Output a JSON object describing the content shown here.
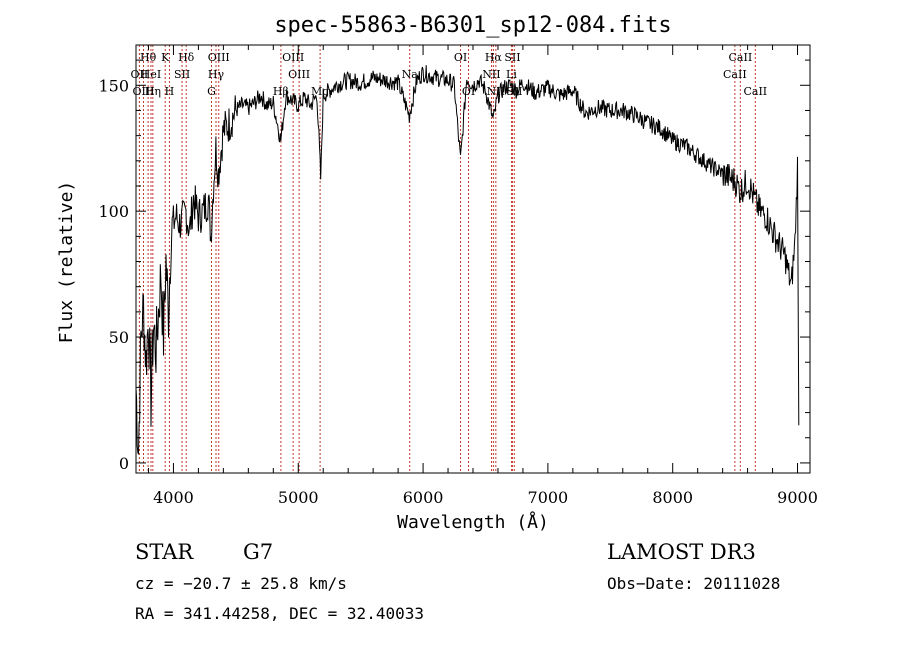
{
  "chart_data": {
    "type": "line",
    "title": "spec-55863-B6301_sp12-084.fits",
    "xlabel": "Wavelength (Å)",
    "ylabel": "Flux (relative)",
    "xlim": [
      3700,
      9100
    ],
    "ylim": [
      -4,
      166
    ],
    "xticks": [
      4000,
      5000,
      6000,
      7000,
      8000,
      9000
    ],
    "yticks": [
      0,
      50,
      100,
      150
    ],
    "grid": false,
    "series": [
      {
        "name": "spectrum",
        "x": [
          3700,
          3720,
          3740,
          3760,
          3780,
          3800,
          3820,
          3840,
          3860,
          3880,
          3900,
          3920,
          3940,
          3960,
          3980,
          4000,
          4020,
          4050,
          4080,
          4100,
          4130,
          4160,
          4200,
          4240,
          4280,
          4300,
          4320,
          4340,
          4360,
          4400,
          4450,
          4500,
          4550,
          4600,
          4650,
          4700,
          4750,
          4800,
          4860,
          4900,
          4950,
          5000,
          5050,
          5100,
          5150,
          5180,
          5200,
          5250,
          5300,
          5400,
          5500,
          5600,
          5700,
          5800,
          5890,
          5950,
          6000,
          6100,
          6200,
          6250,
          6300,
          6350,
          6400,
          6450,
          6500,
          6563,
          6600,
          6650,
          6700,
          6750,
          6800,
          6900,
          7000,
          7100,
          7200,
          7300,
          7400,
          7500,
          7600,
          7700,
          7800,
          7900,
          8000,
          8100,
          8200,
          8300,
          8400,
          8500,
          8542,
          8600,
          8662,
          8700,
          8750,
          8800,
          8850,
          8900,
          8950,
          8980,
          9000,
          9010
        ],
        "y": [
          30,
          5,
          50,
          62,
          40,
          58,
          25,
          55,
          45,
          60,
          75,
          50,
          80,
          60,
          90,
          95,
          98,
          95,
          97,
          100,
          92,
          105,
          98,
          100,
          105,
          90,
          110,
          125,
          115,
          132,
          135,
          140,
          142,
          141,
          143,
          146,
          142,
          143,
          128,
          146,
          144,
          142,
          145,
          142,
          146,
          113,
          146,
          148,
          150,
          152,
          151,
          153,
          152,
          151,
          138,
          152,
          155,
          153,
          152,
          150,
          120,
          153,
          150,
          152,
          148,
          136,
          146,
          149,
          150,
          148,
          151,
          147,
          149,
          146,
          148,
          139,
          141,
          140,
          140,
          138,
          135,
          133,
          128,
          126,
          122,
          118,
          115,
          112,
          108,
          112,
          104,
          100,
          98,
          92,
          87,
          82,
          70,
          88,
          118,
          15
        ]
      }
    ],
    "line_marks": [
      {
        "label": "Hθ",
        "x": 3797,
        "row": 1
      },
      {
        "label": "OII",
        "x": 3727,
        "row": 2
      },
      {
        "label": "OIII",
        "x": 3760,
        "row": 3
      },
      {
        "label": "K",
        "x": 3934,
        "row": 1
      },
      {
        "label": "HeI",
        "x": 3820,
        "row": 2
      },
      {
        "label": "Hη",
        "x": 3835,
        "row": 3
      },
      {
        "label": "H",
        "x": 3968,
        "row": 3
      },
      {
        "label": "SII",
        "x": 4069,
        "row": 2
      },
      {
        "label": "Hδ",
        "x": 4102,
        "row": 1
      },
      {
        "label": "OIII",
        "x": 4363,
        "row": 1
      },
      {
        "label": "Hγ",
        "x": 4341,
        "row": 2
      },
      {
        "label": "G",
        "x": 4305,
        "row": 3
      },
      {
        "label": "OIII",
        "x": 4959,
        "row": 1
      },
      {
        "label": "OIII",
        "x": 5007,
        "row": 2
      },
      {
        "label": "Hβ",
        "x": 4861,
        "row": 3
      },
      {
        "label": "Mg",
        "x": 5175,
        "row": 3
      },
      {
        "label": "Na",
        "x": 5893,
        "row": 2
      },
      {
        "label": "OI",
        "x": 6300,
        "row": 1
      },
      {
        "label": "OI",
        "x": 6364,
        "row": 3
      },
      {
        "label": "Hα",
        "x": 6563,
        "row": 1
      },
      {
        "label": "SII",
        "x": 6716,
        "row": 1
      },
      {
        "label": "NII",
        "x": 6548,
        "row": 2
      },
      {
        "label": "Li",
        "x": 6708,
        "row": 2
      },
      {
        "label": "NII",
        "x": 6583,
        "row": 3
      },
      {
        "label": "SII",
        "x": 6731,
        "row": 3
      },
      {
        "label": "CaII",
        "x": 8542,
        "row": 1
      },
      {
        "label": "CaII",
        "x": 8498,
        "row": 2
      },
      {
        "label": "CaII",
        "x": 8662,
        "row": 3
      }
    ]
  },
  "info": {
    "object_class": "STAR",
    "subclass": "G7",
    "survey": "LAMOST DR3",
    "cz": "cz = −20.7 ± 25.8 km/s",
    "obs_date": "Obs−Date: 20111028",
    "coords": "RA = 341.44258, DEC =  32.40033"
  },
  "colors": {
    "spectrum": "#000000",
    "line_marker": "#c0392b",
    "background": "#ffffff"
  }
}
